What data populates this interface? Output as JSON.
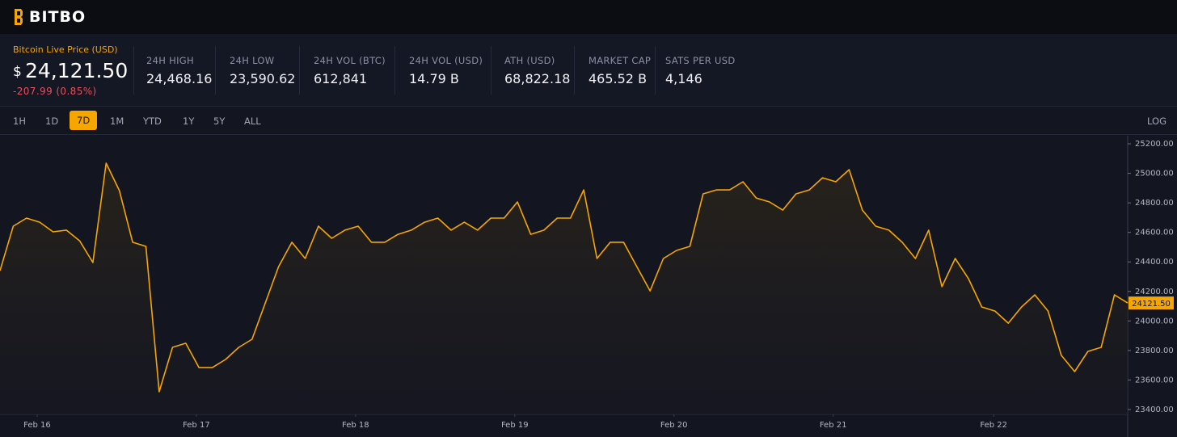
{
  "brand": "BITBO",
  "price": {
    "label": "Bitcoin Live Price (USD)",
    "currency": "$",
    "value": "24,121.50",
    "change": "-207.99 (0.85%)"
  },
  "stats": [
    {
      "label": "24H HIGH",
      "value": "24,468.16"
    },
    {
      "label": "24H LOW",
      "value": "23,590.62"
    },
    {
      "label": "24H VOL (BTC)",
      "value": "612,841"
    },
    {
      "label": "24H VOL (USD)",
      "value": "14.79 B"
    },
    {
      "label": "ATH (USD)",
      "value": "68,822.18"
    },
    {
      "label": "MARKET CAP",
      "value": "465.52 B"
    },
    {
      "label": "SATS PER USD",
      "value": "4,146"
    }
  ],
  "timeframes": [
    "1H",
    "1D",
    "7D",
    "1M",
    "YTD",
    "1Y",
    "5Y",
    "ALL"
  ],
  "active_timeframe": "7D",
  "scale_toggle": "LOG",
  "chart_data": {
    "type": "line",
    "color": "#f7a600",
    "values": [
      24341,
      24642,
      24697,
      24669,
      24604,
      24615,
      24543,
      24396,
      25069,
      24883,
      24533,
      24505,
      23520,
      23821,
      23849,
      23684,
      23684,
      23739,
      23821,
      23876,
      24122,
      24368,
      24533,
      24423,
      24642,
      24560,
      24615,
      24642,
      24533,
      24533,
      24587,
      24615,
      24669,
      24697,
      24615,
      24669,
      24615,
      24697,
      24697,
      24806,
      24587,
      24615,
      24697,
      24697,
      24888,
      24423,
      24533,
      24533,
      24368,
      24204,
      24423,
      24478,
      24505,
      24861,
      24888,
      24888,
      24943,
      24833,
      24806,
      24751,
      24861,
      24888,
      24970,
      24943,
      25025,
      24751,
      24642,
      24615,
      24533,
      24423,
      24615,
      24232,
      24423,
      24286,
      24095,
      24067,
      23985,
      24095,
      24177,
      24067,
      23767,
      23657,
      23794,
      23821,
      24177,
      24121.5
    ],
    "last_value_label": "24121.50",
    "xlim": [
      0,
      85
    ],
    "xticks": [
      {
        "value": 2.8,
        "label": "Feb 16"
      },
      {
        "value": 14.8,
        "label": "Feb 17"
      },
      {
        "value": 26.8,
        "label": "Feb 18"
      },
      {
        "value": 38.8,
        "label": "Feb 19"
      },
      {
        "value": 50.8,
        "label": "Feb 20"
      },
      {
        "value": 62.8,
        "label": "Feb 21"
      },
      {
        "value": 74.9,
        "label": "Feb 22"
      }
    ],
    "ylim": [
      23367,
      25255
    ],
    "yticks": [
      {
        "value": 25200,
        "label": "25200.00"
      },
      {
        "value": 25000,
        "label": "25000.00"
      },
      {
        "value": 24800,
        "label": "24800.00"
      },
      {
        "value": 24600,
        "label": "24600.00"
      },
      {
        "value": 24400,
        "label": "24400.00"
      },
      {
        "value": 24200,
        "label": "24200.00"
      },
      {
        "value": 24000,
        "label": "24000.00"
      },
      {
        "value": 23800,
        "label": "23800.00"
      },
      {
        "value": 23600,
        "label": "23600.00"
      },
      {
        "value": 23400,
        "label": "23400.00"
      }
    ]
  }
}
